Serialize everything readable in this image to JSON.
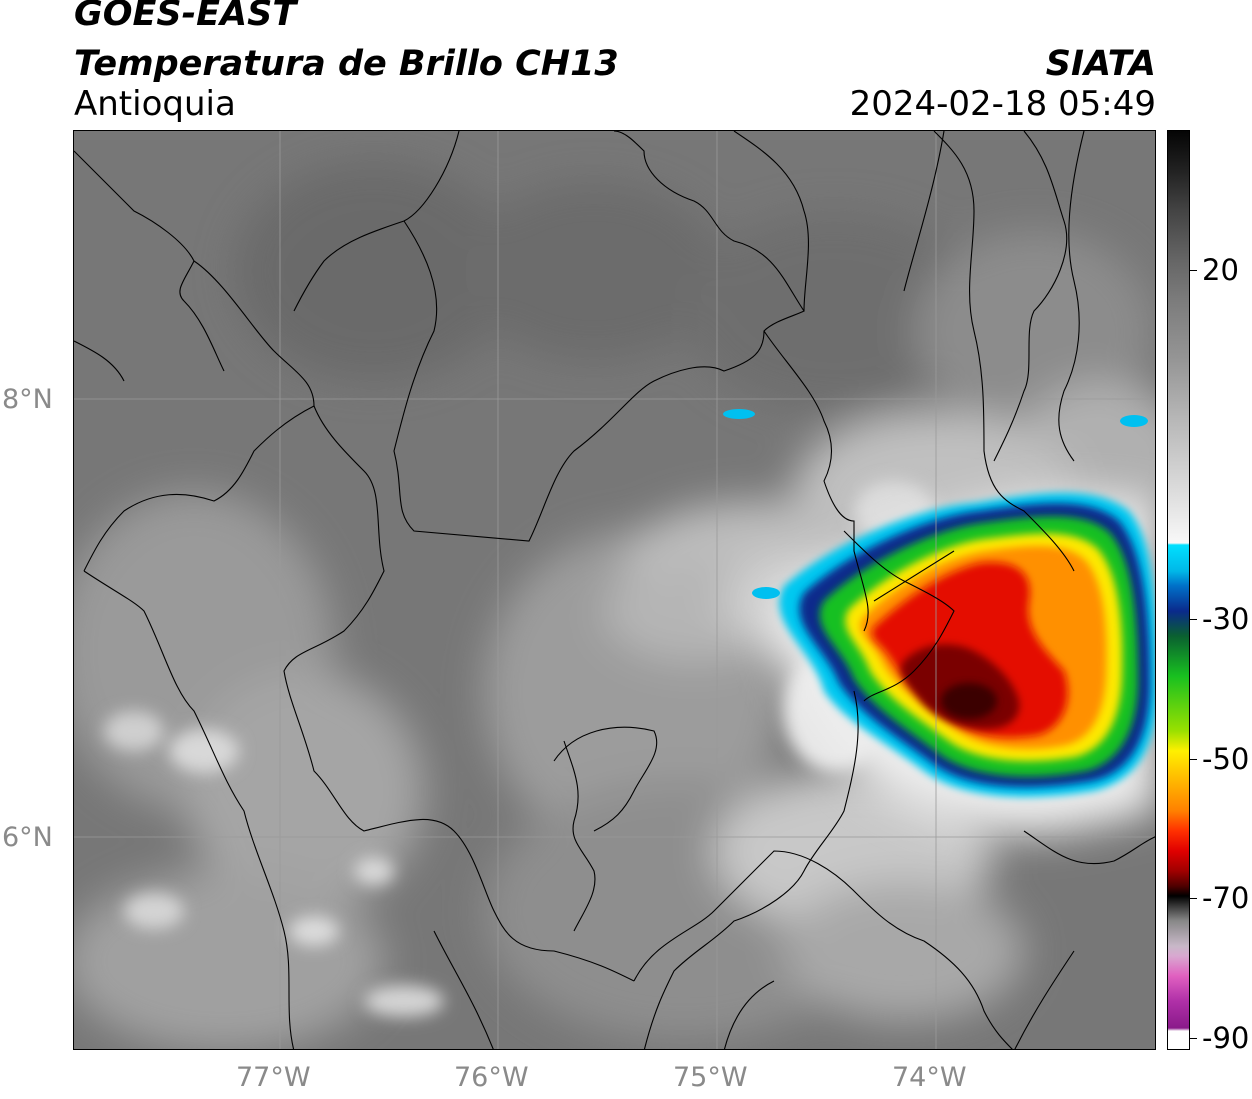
{
  "header": {
    "agency": "GOES-EAST",
    "product": "Temperatura de Brillo CH13",
    "region": "Antioquia",
    "organization": "SIATA",
    "timestamp": "2024-02-18 05:49"
  },
  "map": {
    "lat_labels": [
      "8°N",
      "6°N"
    ],
    "lon_labels": [
      "77°W",
      "76°W",
      "75°W",
      "74°W"
    ],
    "extent": {
      "lon": [
        -77.95,
        -73.0
      ],
      "lat": [
        5.0,
        9.2
      ]
    }
  },
  "colorbar": {
    "tick_labels": [
      "20",
      "-30",
      "-50",
      "-70",
      "-90"
    ],
    "range": [
      -90,
      35
    ],
    "colors": {
      "warm": "#7a7a7a",
      "cold_white": "#f2f2f2",
      "cyan": "#00c8ff",
      "blue": "#0a2a8c",
      "green": "#10c020",
      "yellow": "#ffee00",
      "orange": "#ff8800",
      "red": "#e00000",
      "dark_red": "#6a0000",
      "black": "#000000",
      "pink": "#e060c0",
      "purple": "#8a1a8a"
    }
  }
}
